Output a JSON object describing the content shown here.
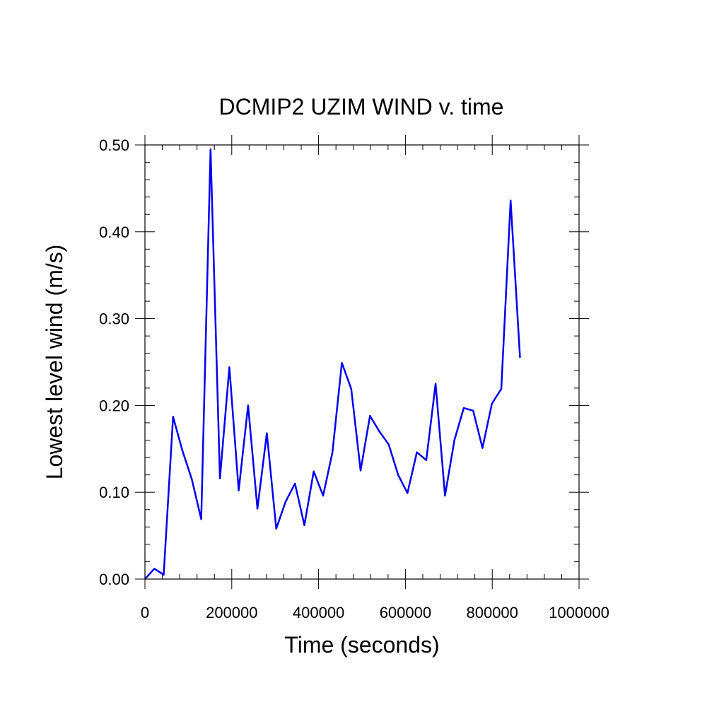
{
  "chart_data": {
    "type": "line",
    "title": "DCMIP2 UZIM WIND v. time",
    "xlabel": "Time (seconds)",
    "ylabel": "Lowest level wind (m/s)",
    "xlim": [
      0,
      1000000
    ],
    "ylim": [
      0,
      0.5
    ],
    "x_ticks": [
      0,
      200000,
      400000,
      600000,
      800000,
      1000000
    ],
    "x_tick_labels": [
      "0",
      "200000",
      "400000",
      "600000",
      "800000",
      "1000000"
    ],
    "y_ticks": [
      0,
      0.1,
      0.2,
      0.3,
      0.4,
      0.5
    ],
    "y_tick_labels": [
      "0.00",
      "0.10",
      "0.20",
      "0.30",
      "0.40",
      "0.50"
    ],
    "grid": false,
    "line_color": "#0000ee",
    "series": [
      {
        "x": [
          0,
          21600,
          43200,
          64800,
          86400,
          108000,
          129600,
          151200,
          172800,
          194400,
          216000,
          237600,
          259200,
          280800,
          302400,
          324000,
          345600,
          367200,
          388800,
          410400,
          432000,
          453600,
          475200,
          496800,
          518400,
          540000,
          561600,
          583200,
          604800,
          626400,
          648000,
          669600,
          691200,
          712800,
          734400,
          756000,
          777600,
          799200,
          820800,
          842400,
          864000
        ],
        "y": [
          0.0,
          0.012,
          0.005,
          0.187,
          0.148,
          0.115,
          0.069,
          0.495,
          0.116,
          0.244,
          0.102,
          0.2,
          0.081,
          0.168,
          0.058,
          0.089,
          0.11,
          0.062,
          0.124,
          0.096,
          0.146,
          0.249,
          0.219,
          0.125,
          0.188,
          0.17,
          0.155,
          0.12,
          0.099,
          0.146,
          0.137,
          0.225,
          0.096,
          0.16,
          0.197,
          0.194,
          0.151,
          0.202,
          0.219,
          0.436,
          0.255
        ]
      }
    ]
  }
}
